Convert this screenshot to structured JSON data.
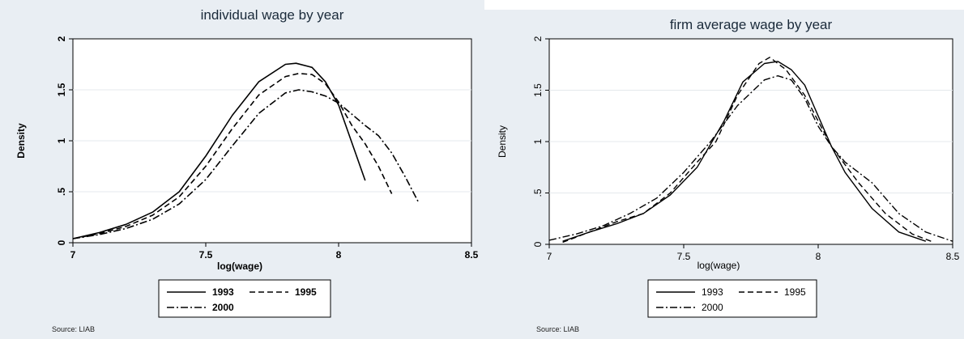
{
  "chart_data": [
    {
      "type": "line",
      "title": "individual wage by year",
      "xlabel": "log(wage)",
      "ylabel": "Density",
      "xlim": [
        7,
        8.5
      ],
      "ylim": [
        0,
        2
      ],
      "xticks": [
        "7",
        "7.5",
        "8",
        "8.5"
      ],
      "yticks": [
        "0",
        ".5",
        "1",
        "1.5",
        "2"
      ],
      "grid": "horizontal",
      "legend_position": "bottom",
      "source": "Source: LIAB",
      "series": [
        {
          "name": "1993",
          "style": "solid",
          "x": [
            7.0,
            7.1,
            7.2,
            7.3,
            7.4,
            7.5,
            7.6,
            7.7,
            7.8,
            7.84,
            7.9,
            7.95,
            8.0,
            8.05,
            8.1
          ],
          "y": [
            0.04,
            0.1,
            0.18,
            0.3,
            0.5,
            0.85,
            1.25,
            1.58,
            1.75,
            1.76,
            1.72,
            1.58,
            1.35,
            0.98,
            0.61
          ]
        },
        {
          "name": "1995",
          "style": "dashed",
          "x": [
            7.0,
            7.1,
            7.2,
            7.3,
            7.4,
            7.5,
            7.6,
            7.7,
            7.8,
            7.85,
            7.9,
            7.95,
            8.0,
            8.05,
            8.1,
            8.15,
            8.2
          ],
          "y": [
            0.04,
            0.09,
            0.16,
            0.27,
            0.45,
            0.75,
            1.12,
            1.45,
            1.63,
            1.66,
            1.65,
            1.56,
            1.38,
            1.15,
            0.97,
            0.75,
            0.48
          ]
        },
        {
          "name": "2000",
          "style": "dashdot",
          "x": [
            7.0,
            7.1,
            7.2,
            7.3,
            7.4,
            7.5,
            7.6,
            7.7,
            7.8,
            7.85,
            7.9,
            7.95,
            8.0,
            8.05,
            8.1,
            8.15,
            8.2,
            8.25,
            8.3
          ],
          "y": [
            0.04,
            0.08,
            0.14,
            0.23,
            0.38,
            0.62,
            0.95,
            1.27,
            1.47,
            1.5,
            1.48,
            1.44,
            1.37,
            1.26,
            1.15,
            1.05,
            0.88,
            0.65,
            0.4
          ]
        }
      ]
    },
    {
      "type": "line",
      "title": "firm average wage by year",
      "xlabel": "log(wage)",
      "ylabel": "Density",
      "xlim": [
        7,
        8.5
      ],
      "ylim": [
        0,
        2
      ],
      "xticks": [
        "7",
        "7.5",
        "8",
        "8.5"
      ],
      "yticks": [
        "0",
        ".5",
        "1",
        "1.5",
        "2"
      ],
      "grid": "horizontal",
      "legend_position": "bottom",
      "source": "Source: LIAB",
      "series": [
        {
          "name": "1993",
          "style": "solid",
          "x": [
            7.05,
            7.15,
            7.25,
            7.35,
            7.45,
            7.55,
            7.65,
            7.72,
            7.8,
            7.85,
            7.9,
            7.95,
            8.0,
            8.05,
            8.1,
            8.2,
            8.3,
            8.4
          ],
          "y": [
            0.03,
            0.12,
            0.2,
            0.3,
            0.48,
            0.75,
            1.2,
            1.58,
            1.76,
            1.78,
            1.7,
            1.55,
            1.25,
            0.95,
            0.7,
            0.35,
            0.12,
            0.03
          ]
        },
        {
          "name": "1995",
          "style": "dashed",
          "x": [
            7.05,
            7.15,
            7.25,
            7.35,
            7.45,
            7.55,
            7.62,
            7.7,
            7.78,
            7.82,
            7.88,
            7.95,
            8.0,
            8.05,
            8.15,
            8.25,
            8.35,
            8.42
          ],
          "y": [
            0.02,
            0.12,
            0.22,
            0.3,
            0.5,
            0.8,
            1.0,
            1.45,
            1.76,
            1.82,
            1.7,
            1.45,
            1.2,
            0.95,
            0.6,
            0.3,
            0.1,
            0.03
          ]
        },
        {
          "name": "2000",
          "style": "dashdot",
          "x": [
            7.0,
            7.1,
            7.2,
            7.3,
            7.4,
            7.5,
            7.6,
            7.7,
            7.8,
            7.85,
            7.9,
            7.95,
            8.0,
            8.05,
            8.1,
            8.2,
            8.3,
            8.4,
            8.5
          ],
          "y": [
            0.04,
            0.1,
            0.18,
            0.3,
            0.45,
            0.7,
            1.0,
            1.35,
            1.6,
            1.64,
            1.6,
            1.42,
            1.15,
            0.95,
            0.8,
            0.6,
            0.3,
            0.12,
            0.03
          ]
        }
      ]
    }
  ]
}
